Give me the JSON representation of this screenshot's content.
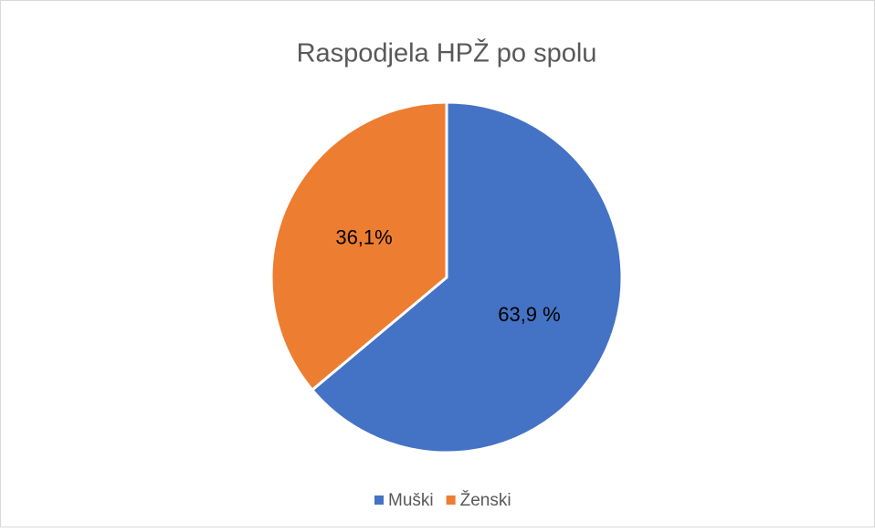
{
  "chart_data": {
    "type": "pie",
    "title": "Raspodjela HPŽ po spolu",
    "categories": [
      "Muški",
      "Ženski"
    ],
    "values": [
      63.9,
      36.1
    ],
    "value_labels": [
      "63,9 %",
      "36,1%"
    ],
    "colors": [
      "#4472c4",
      "#ed7d31"
    ],
    "legend": "bottom"
  }
}
